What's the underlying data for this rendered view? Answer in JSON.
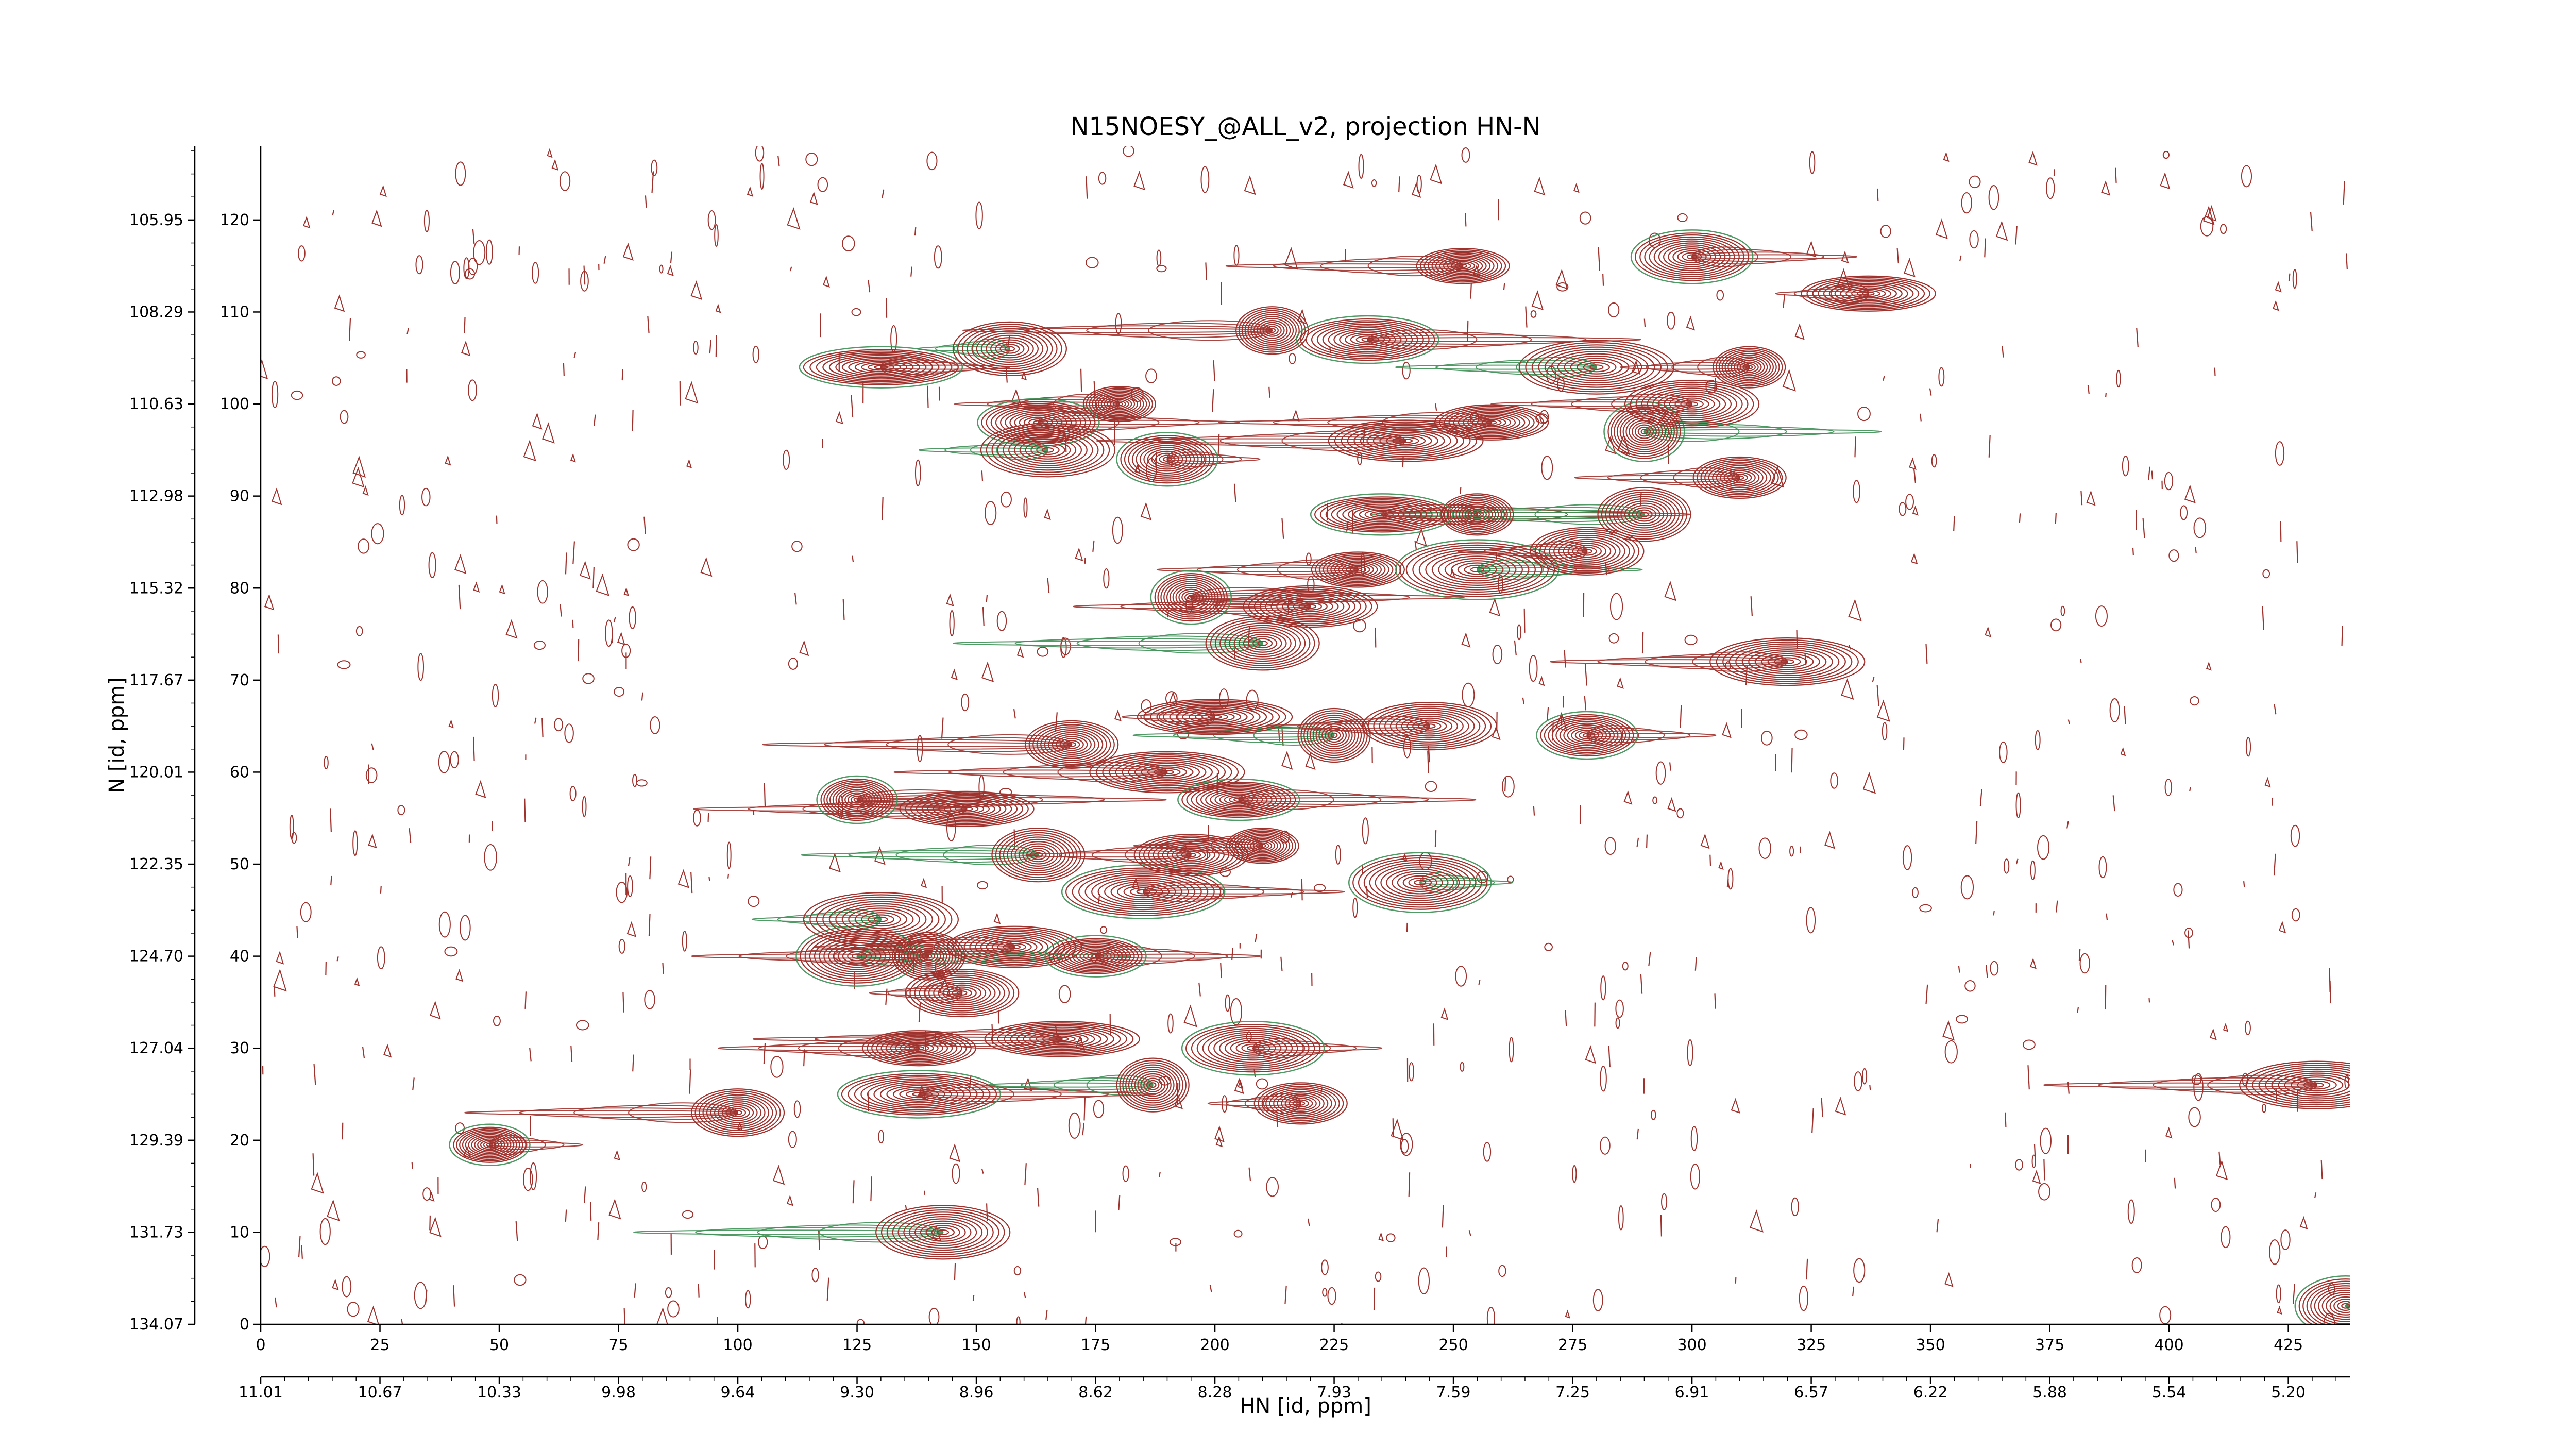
{
  "chart_data": {
    "type": "contour",
    "title": "N15NOESY_@ALL_v2, projection HN-N",
    "xlabel": "HN [id, ppm]",
    "ylabel": "N [id, ppm]",
    "x_index_ticks": [
      "0",
      "25",
      "50",
      "75",
      "100",
      "125",
      "150",
      "175",
      "200",
      "225",
      "250",
      "275",
      "300",
      "325",
      "350",
      "375",
      "400",
      "425"
    ],
    "x_ppm_ticks": [
      "11.01",
      "10.67",
      "10.33",
      "9.98",
      "9.64",
      "9.30",
      "8.96",
      "8.62",
      "8.28",
      "7.93",
      "7.59",
      "7.25",
      "6.91",
      "6.57",
      "6.22",
      "5.88",
      "5.54",
      "5.20"
    ],
    "y_index_ticks": [
      "0",
      "10",
      "20",
      "30",
      "40",
      "50",
      "60",
      "70",
      "80",
      "90",
      "100",
      "110",
      "120"
    ],
    "y_ppm_ticks": [
      "134.07",
      "131.73",
      "129.39",
      "127.04",
      "124.70",
      "122.35",
      "120.01",
      "117.67",
      "115.32",
      "112.98",
      "110.63",
      "108.29",
      "105.95"
    ],
    "xlim": [
      0,
      438
    ],
    "ylim": [
      0,
      128
    ],
    "colors": {
      "positive": "#a0322d",
      "negative": "#3e8f55"
    },
    "peaks": [
      {
        "x": 48,
        "y": 19.5,
        "sign": "pos"
      },
      {
        "x": 143,
        "y": 10,
        "sign": "pos"
      },
      {
        "x": 100,
        "y": 23,
        "sign": "pos"
      },
      {
        "x": 138,
        "y": 25,
        "sign": "pos"
      },
      {
        "x": 138,
        "y": 30,
        "sign": "pos"
      },
      {
        "x": 187,
        "y": 26,
        "sign": "pos"
      },
      {
        "x": 208,
        "y": 30,
        "sign": "pos"
      },
      {
        "x": 218,
        "y": 24,
        "sign": "pos"
      },
      {
        "x": 168,
        "y": 31,
        "sign": "pos"
      },
      {
        "x": 125,
        "y": 40,
        "sign": "pos"
      },
      {
        "x": 140,
        "y": 40,
        "sign": "pos"
      },
      {
        "x": 158,
        "y": 41,
        "sign": "pos"
      },
      {
        "x": 175,
        "y": 40,
        "sign": "pos"
      },
      {
        "x": 130,
        "y": 44,
        "sign": "pos"
      },
      {
        "x": 147,
        "y": 36,
        "sign": "pos"
      },
      {
        "x": 125,
        "y": 57,
        "sign": "pos"
      },
      {
        "x": 148,
        "y": 56,
        "sign": "pos"
      },
      {
        "x": 163,
        "y": 51,
        "sign": "pos"
      },
      {
        "x": 185,
        "y": 47,
        "sign": "pos"
      },
      {
        "x": 195,
        "y": 51,
        "sign": "pos"
      },
      {
        "x": 210,
        "y": 52,
        "sign": "pos"
      },
      {
        "x": 243,
        "y": 48,
        "sign": "pos"
      },
      {
        "x": 170,
        "y": 63,
        "sign": "pos"
      },
      {
        "x": 190,
        "y": 60,
        "sign": "pos"
      },
      {
        "x": 205,
        "y": 57,
        "sign": "pos"
      },
      {
        "x": 225,
        "y": 64,
        "sign": "pos"
      },
      {
        "x": 245,
        "y": 65,
        "sign": "pos"
      },
      {
        "x": 278,
        "y": 64,
        "sign": "pos"
      },
      {
        "x": 200,
        "y": 66,
        "sign": "pos"
      },
      {
        "x": 210,
        "y": 74,
        "sign": "pos"
      },
      {
        "x": 195,
        "y": 79,
        "sign": "pos"
      },
      {
        "x": 220,
        "y": 78,
        "sign": "pos"
      },
      {
        "x": 230,
        "y": 82,
        "sign": "pos"
      },
      {
        "x": 255,
        "y": 82,
        "sign": "pos"
      },
      {
        "x": 278,
        "y": 84,
        "sign": "pos"
      },
      {
        "x": 255,
        "y": 88,
        "sign": "pos"
      },
      {
        "x": 235,
        "y": 88,
        "sign": "pos"
      },
      {
        "x": 290,
        "y": 88,
        "sign": "pos"
      },
      {
        "x": 320,
        "y": 72,
        "sign": "pos"
      },
      {
        "x": 163,
        "y": 98,
        "sign": "pos"
      },
      {
        "x": 180,
        "y": 100,
        "sign": "pos"
      },
      {
        "x": 165,
        "y": 95,
        "sign": "pos"
      },
      {
        "x": 190,
        "y": 94,
        "sign": "pos"
      },
      {
        "x": 240,
        "y": 96,
        "sign": "pos"
      },
      {
        "x": 258,
        "y": 98,
        "sign": "pos"
      },
      {
        "x": 290,
        "y": 97,
        "sign": "pos"
      },
      {
        "x": 300,
        "y": 100,
        "sign": "pos"
      },
      {
        "x": 310,
        "y": 92,
        "sign": "pos"
      },
      {
        "x": 130,
        "y": 104,
        "sign": "pos"
      },
      {
        "x": 157,
        "y": 106,
        "sign": "pos"
      },
      {
        "x": 212,
        "y": 108,
        "sign": "pos"
      },
      {
        "x": 232,
        "y": 107,
        "sign": "pos"
      },
      {
        "x": 252,
        "y": 115,
        "sign": "pos"
      },
      {
        "x": 280,
        "y": 104,
        "sign": "pos"
      },
      {
        "x": 300,
        "y": 116,
        "sign": "pos"
      },
      {
        "x": 312,
        "y": 104,
        "sign": "pos"
      },
      {
        "x": 337,
        "y": 112,
        "sign": "pos"
      },
      {
        "x": 437,
        "y": 2,
        "sign": "pos"
      },
      {
        "x": 431,
        "y": 26,
        "sign": "pos"
      }
    ]
  }
}
